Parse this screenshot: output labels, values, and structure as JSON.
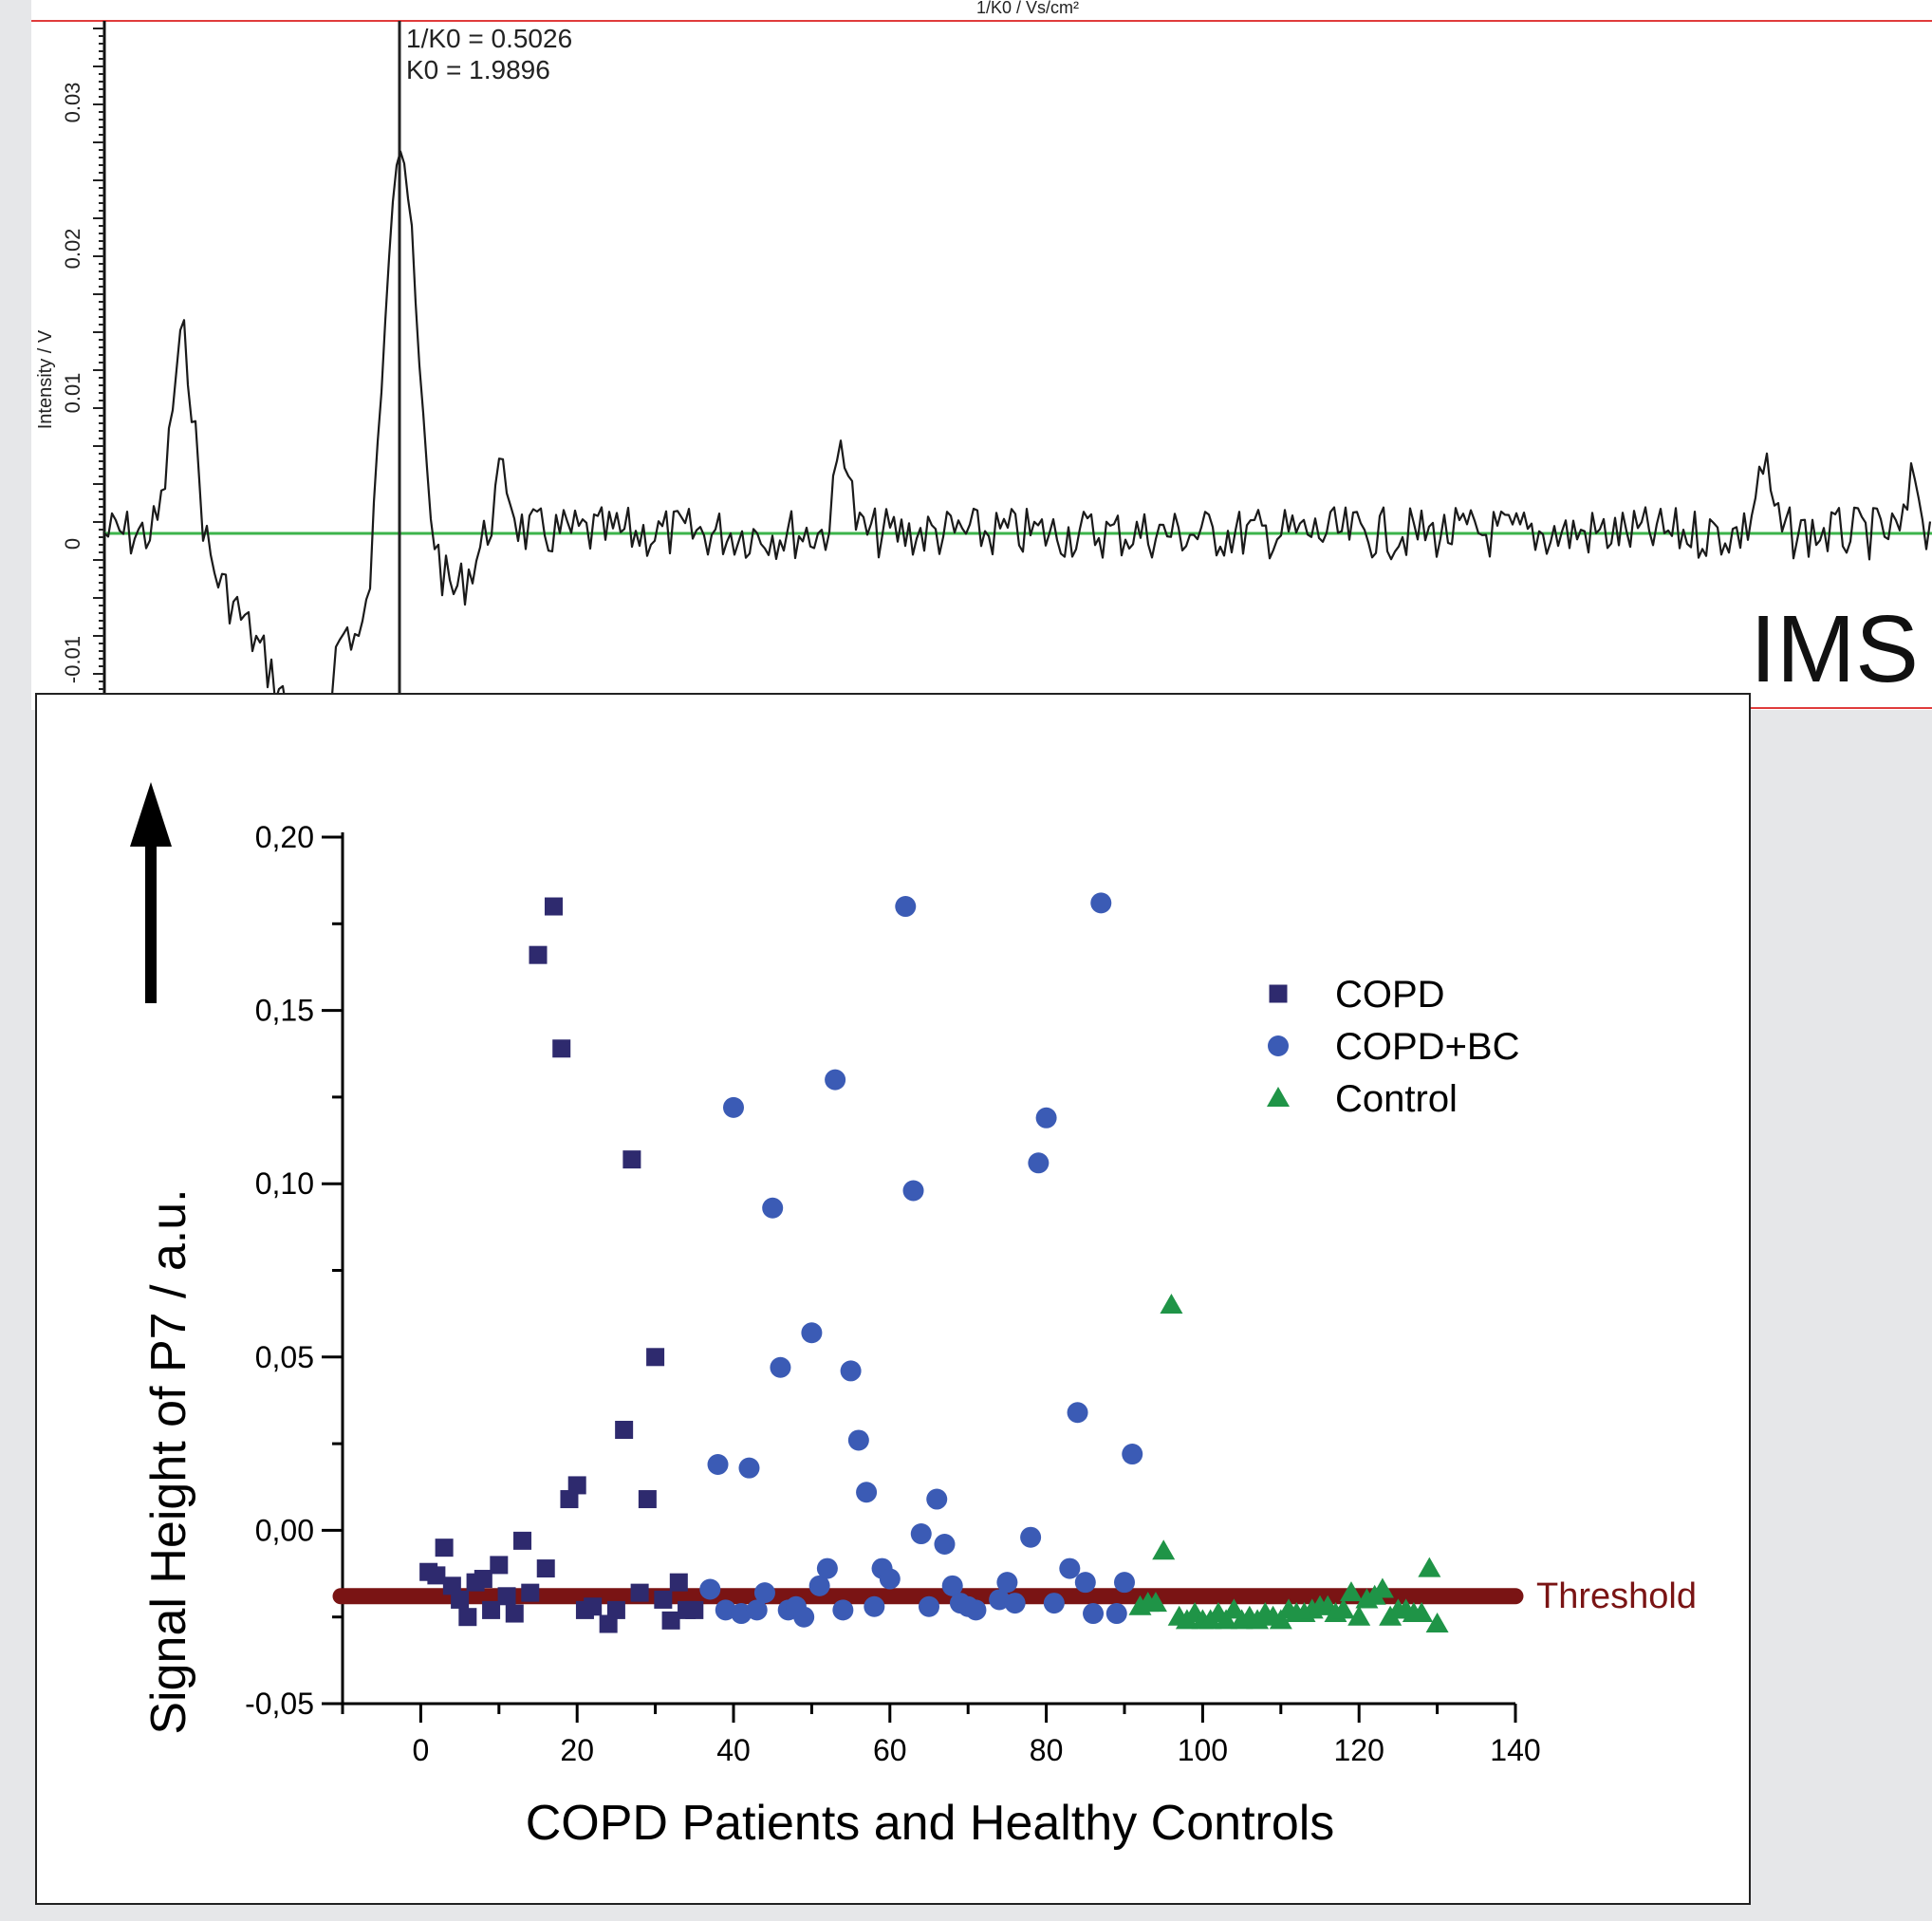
{
  "ims_panel": {
    "top_axis_label": "1/K0 / Vs/cm²",
    "ylabel": "Intensity / V",
    "y_ticks": [
      "0.03",
      "0.02",
      "0.01",
      "0",
      "-0.01"
    ],
    "marker_line1": "1/K0 = 0.5026",
    "marker_line2": "K0 = 1.9896",
    "corner_label": "IMS",
    "baseline_color": "#3cb44b",
    "frame_color": "#e03c3c"
  },
  "chart_data": {
    "type": "scatter",
    "title": "",
    "xlabel": "COPD Patients and Healthy Controls",
    "ylabel": "Signal Height of P7 / a.u.",
    "xlim": [
      -10,
      140
    ],
    "ylim": [
      -0.05,
      0.2
    ],
    "x_ticks": [
      0,
      20,
      40,
      60,
      80,
      100,
      120,
      140
    ],
    "y_ticks": [
      -0.05,
      0.0,
      0.05,
      0.1,
      0.15,
      0.2
    ],
    "x_tick_labels": [
      "0",
      "20",
      "40",
      "60",
      "80",
      "100",
      "120",
      "140"
    ],
    "y_tick_labels": [
      "-0,05",
      "0,00",
      "0,05",
      "0,10",
      "0,15",
      "0,20"
    ],
    "threshold": {
      "label": "Threshold",
      "value": -0.019,
      "color": "#7a1414"
    },
    "legend_position": "top-right",
    "series": [
      {
        "name": "COPD",
        "marker": "square",
        "color": "#2e2a6e",
        "points": [
          [
            1,
            -0.012
          ],
          [
            2,
            -0.013
          ],
          [
            3,
            -0.005
          ],
          [
            4,
            -0.016
          ],
          [
            5,
            -0.02
          ],
          [
            6,
            -0.025
          ],
          [
            7,
            -0.015
          ],
          [
            8,
            -0.014
          ],
          [
            9,
            -0.023
          ],
          [
            10,
            -0.01
          ],
          [
            11,
            -0.019
          ],
          [
            12,
            -0.024
          ],
          [
            13,
            -0.003
          ],
          [
            14,
            -0.018
          ],
          [
            15,
            0.166
          ],
          [
            16,
            -0.011
          ],
          [
            17,
            0.18
          ],
          [
            18,
            0.139
          ],
          [
            19,
            0.009
          ],
          [
            20,
            0.013
          ],
          [
            21,
            -0.023
          ],
          [
            22,
            -0.022
          ],
          [
            24,
            -0.027
          ],
          [
            25,
            -0.023
          ],
          [
            26,
            0.029
          ],
          [
            27,
            0.107
          ],
          [
            28,
            -0.018
          ],
          [
            29,
            0.009
          ],
          [
            30,
            0.05
          ],
          [
            31,
            -0.02
          ],
          [
            32,
            -0.026
          ],
          [
            33,
            -0.015
          ],
          [
            34,
            -0.023
          ],
          [
            35,
            -0.023
          ]
        ]
      },
      {
        "name": "COPD+BC",
        "marker": "circle",
        "color": "#3b5bb5",
        "points": [
          [
            37,
            -0.017
          ],
          [
            38,
            0.019
          ],
          [
            39,
            -0.023
          ],
          [
            40,
            0.122
          ],
          [
            41,
            -0.024
          ],
          [
            42,
            0.018
          ],
          [
            43,
            -0.023
          ],
          [
            44,
            -0.018
          ],
          [
            45,
            0.093
          ],
          [
            46,
            0.047
          ],
          [
            47,
            -0.023
          ],
          [
            48,
            -0.022
          ],
          [
            49,
            -0.025
          ],
          [
            50,
            0.057
          ],
          [
            51,
            -0.016
          ],
          [
            52,
            -0.011
          ],
          [
            53,
            0.13
          ],
          [
            54,
            -0.023
          ],
          [
            55,
            0.046
          ],
          [
            56,
            0.026
          ],
          [
            57,
            0.011
          ],
          [
            58,
            -0.022
          ],
          [
            59,
            -0.011
          ],
          [
            60,
            -0.014
          ],
          [
            62,
            0.18
          ],
          [
            63,
            0.098
          ],
          [
            64,
            -0.001
          ],
          [
            65,
            -0.022
          ],
          [
            66,
            0.009
          ],
          [
            67,
            -0.004
          ],
          [
            68,
            -0.016
          ],
          [
            69,
            -0.021
          ],
          [
            70,
            -0.022
          ],
          [
            71,
            -0.023
          ],
          [
            74,
            -0.02
          ],
          [
            75,
            -0.015
          ],
          [
            76,
            -0.021
          ],
          [
            78,
            -0.002
          ],
          [
            79,
            0.106
          ],
          [
            80,
            0.119
          ],
          [
            81,
            -0.021
          ],
          [
            83,
            -0.011
          ],
          [
            84,
            0.034
          ],
          [
            85,
            -0.015
          ],
          [
            86,
            -0.024
          ],
          [
            87,
            0.181
          ],
          [
            89,
            -0.024
          ],
          [
            90,
            -0.015
          ],
          [
            91,
            0.022
          ]
        ]
      },
      {
        "name": "Control",
        "marker": "triangle",
        "color": "#1f9447",
        "points": [
          [
            92,
            -0.022
          ],
          [
            93,
            -0.021
          ],
          [
            94,
            -0.021
          ],
          [
            95,
            -0.006
          ],
          [
            96,
            0.065
          ],
          [
            97,
            -0.025
          ],
          [
            98,
            -0.026
          ],
          [
            99,
            -0.024
          ],
          [
            100,
            -0.026
          ],
          [
            101,
            -0.026
          ],
          [
            102,
            -0.024
          ],
          [
            103,
            -0.026
          ],
          [
            104,
            -0.023
          ],
          [
            105,
            -0.026
          ],
          [
            106,
            -0.025
          ],
          [
            107,
            -0.026
          ],
          [
            108,
            -0.024
          ],
          [
            109,
            -0.025
          ],
          [
            110,
            -0.026
          ],
          [
            111,
            -0.023
          ],
          [
            112,
            -0.024
          ],
          [
            113,
            -0.024
          ],
          [
            114,
            -0.023
          ],
          [
            115,
            -0.022
          ],
          [
            116,
            -0.022
          ],
          [
            117,
            -0.024
          ],
          [
            118,
            -0.023
          ],
          [
            119,
            -0.018
          ],
          [
            120,
            -0.025
          ],
          [
            121,
            -0.02
          ],
          [
            122,
            -0.019
          ],
          [
            123,
            -0.017
          ],
          [
            124,
            -0.025
          ],
          [
            125,
            -0.023
          ],
          [
            126,
            -0.023
          ],
          [
            127,
            -0.024
          ],
          [
            128,
            -0.024
          ],
          [
            129,
            -0.011
          ],
          [
            130,
            -0.027
          ]
        ]
      }
    ]
  }
}
